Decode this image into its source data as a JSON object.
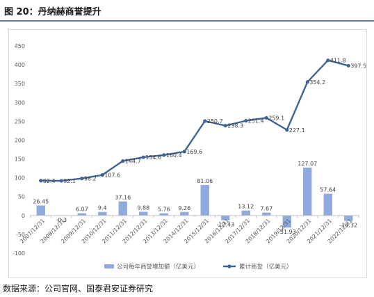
{
  "figure": {
    "title": "图 20：丹纳赫商誉提升",
    "source": "数据来源：公司官网、国泰君安证券研究"
  },
  "chart_data": {
    "type": "bar+line",
    "categories": [
      "2007/12/31",
      "2008/12/31",
      "2009/12/31",
      "2010/12/31",
      "2011/12/31",
      "2012/12/31",
      "2013/12/31",
      "2014/12/31",
      "2015/12/31",
      "2016/12/31",
      "2017/12/31",
      "2018/12/31",
      "2019/12/31",
      "2020/12/31",
      "2021/12/31",
      "2022/12/31"
    ],
    "series": [
      {
        "name": "公司每年商誉增加额（亿美元）",
        "type": "bar",
        "color": "#8faadc",
        "values": [
          26.45,
          -0.3,
          6.07,
          9.4,
          37.16,
          9.88,
          5.76,
          9.26,
          81.06,
          -12.43,
          13.12,
          7.67,
          -31.93,
          127.07,
          57.64,
          -14.32
        ],
        "labels": [
          "26.45",
          "-0.3",
          "6.07",
          "9.4",
          "37.16",
          "9.88",
          "5.76",
          "9.26",
          "81.06",
          "-12.43",
          "13.12",
          "7.67",
          "-31.93",
          "127.07",
          "57.64",
          "-14.32"
        ]
      },
      {
        "name": "累计商誉（亿美元）",
        "type": "line",
        "color": "#3d6596",
        "values": [
          92.4,
          92.1,
          98.2,
          107.6,
          144.7,
          154.6,
          160.4,
          169.6,
          250.7,
          238.3,
          251.4,
          259.1,
          227.1,
          354.2,
          411.8,
          397.5
        ],
        "labels": [
          "92.4",
          "92.1",
          "98.2",
          "107.6",
          "144.7",
          "154.6",
          "160.4",
          "169.6",
          "250.7",
          "238.3",
          "251.4",
          "259.1",
          "227.1",
          "354.2",
          "411.8",
          "397.5"
        ]
      }
    ],
    "yticks": [
      "450",
      "400",
      "350",
      "300",
      "250",
      "200",
      "150",
      "100",
      "50",
      "0",
      "-50",
      "-100"
    ],
    "ylim": [
      -100,
      450
    ],
    "legend": "bottom",
    "grid": false
  },
  "colors": {
    "bar": "#8faadc",
    "line": "#3d6596",
    "axis": "#bfbfbf"
  }
}
